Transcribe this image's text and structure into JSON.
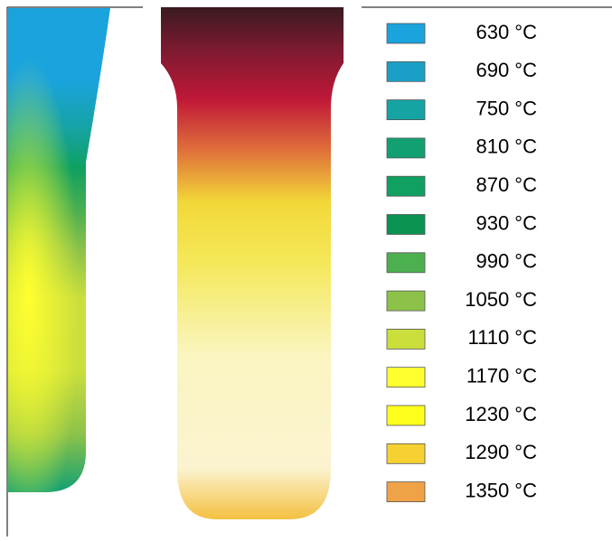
{
  "legend": [
    {
      "label": "630 °C",
      "color": "#1aa3dd"
    },
    {
      "label": "690 °C",
      "color": "#1b9fc6"
    },
    {
      "label": "750 °C",
      "color": "#16a3a3"
    },
    {
      "label": "810 °C",
      "color": "#12a073"
    },
    {
      "label": "870 °C",
      "color": "#0fa062"
    },
    {
      "label": "930 °C",
      "color": "#0b9353"
    },
    {
      "label": "990 °C",
      "color": "#4caf50"
    },
    {
      "label": "1050 °C",
      "color": "#8dc24a"
    },
    {
      "label": "1110 °C",
      "color": "#cade3c"
    },
    {
      "label": "1170 °C",
      "color": "#ffff30"
    },
    {
      "label": "1230 °C",
      "color": "#ffff1e"
    },
    {
      "label": "1290 °C",
      "color": "#f6d132"
    },
    {
      "label": "1350 °C",
      "color": "#f0a246"
    }
  ]
}
